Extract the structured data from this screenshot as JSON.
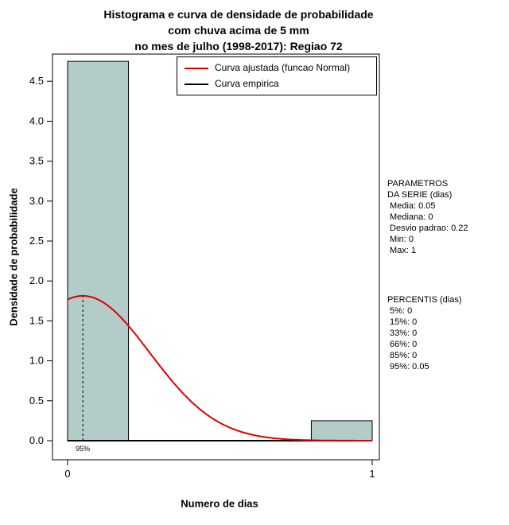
{
  "chart_data": {
    "type": "histogram+density-line",
    "title": [
      "Histograma e curva de densidade de probabilidade",
      "com chuva acima de 5 mm",
      "no mes de julho (1998-2017): Regiao 72"
    ],
    "xlabel": "Numero de dias",
    "ylabel": "Densidade de probabilidade",
    "xlim": [
      0,
      1
    ],
    "ylim": [
      0,
      4.85
    ],
    "x_ticks": [
      0,
      1
    ],
    "y_ticks": [
      0.0,
      0.5,
      1.0,
      1.5,
      2.0,
      2.5,
      3.0,
      3.5,
      4.0,
      4.5
    ],
    "grid": false,
    "bars": [
      {
        "x0": 0.0,
        "x1": 0.2,
        "density": 4.75
      },
      {
        "x0": 0.8,
        "x1": 1.0,
        "density": 0.25
      }
    ],
    "fitted_normal": {
      "mean": 0.05,
      "sd": 0.22
    },
    "empirical_line_y": 0,
    "percentile_marker": {
      "x": 0.05,
      "label": "95%"
    },
    "legend_position": "top-right-inside",
    "legend": [
      {
        "label": "Curva ajustada (funcao Normal)",
        "color": "#dd0000"
      },
      {
        "label": "Curva empirica",
        "color": "#000000"
      }
    ],
    "colors": {
      "bar_fill": "#b3cbc9",
      "bar_stroke": "#000000",
      "fitted": "#dd0000",
      "empirical": "#000000",
      "axis": "#000000"
    }
  },
  "side_panel": {
    "parametros": [
      "PARAMETROS",
      "DA SERIE (dias)",
      " Media: 0.05",
      " Mediana: 0",
      " Desvio padrao: 0.22",
      " Min: 0",
      " Max: 1"
    ],
    "percentis": [
      "PERCENTIS (dias)",
      " 5%: 0",
      " 15%: 0",
      " 33%: 0",
      " 66%: 0",
      " 85%: 0",
      " 95%: 0.05"
    ]
  }
}
